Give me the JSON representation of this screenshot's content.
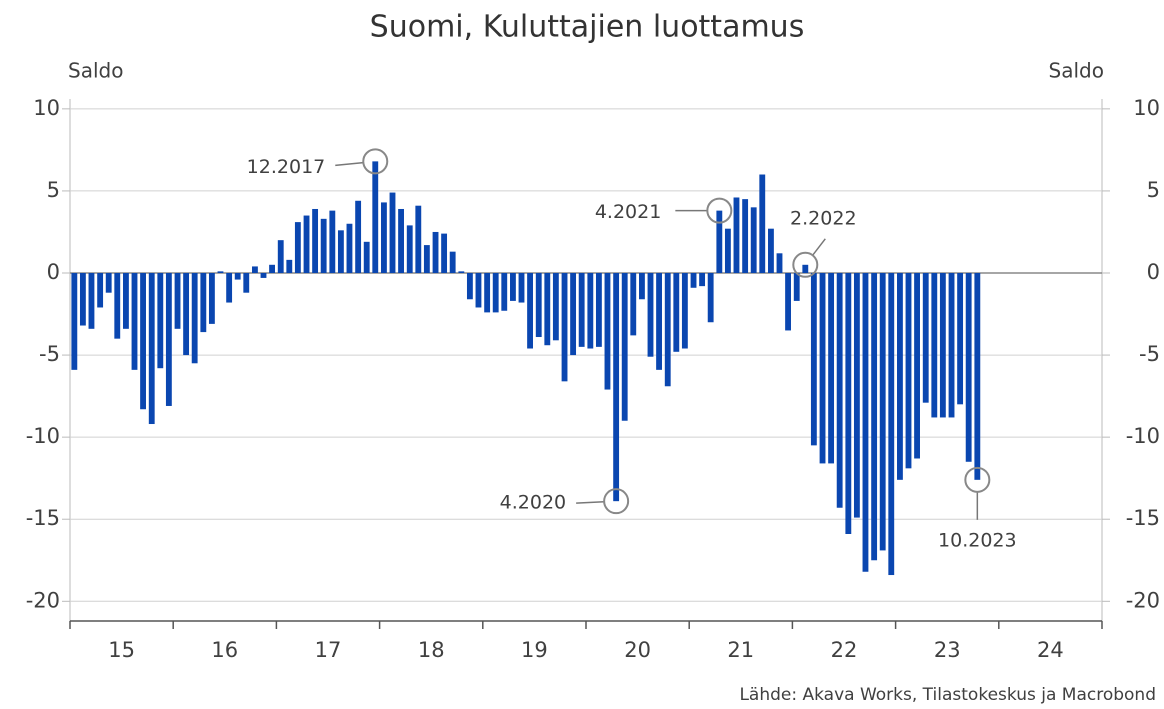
{
  "chart_data": {
    "type": "bar",
    "title": "Suomi, Kuluttajien luottamus",
    "ylabel": "Saldo",
    "y2label": "Saldo",
    "source": "Lähde: Akava Works, Tilastokeskus ja Macrobond",
    "color": "#0a46b0",
    "xlim": [
      15,
      25
    ],
    "xticks": [
      {
        "value": 15.5,
        "label": "15"
      },
      {
        "value": 16.5,
        "label": "16"
      },
      {
        "value": 17.5,
        "label": "17"
      },
      {
        "value": 18.5,
        "label": "18"
      },
      {
        "value": 19.5,
        "label": "19"
      },
      {
        "value": 20.5,
        "label": "20"
      },
      {
        "value": 21.5,
        "label": "21"
      },
      {
        "value": 22.5,
        "label": "22"
      },
      {
        "value": 23.5,
        "label": "23"
      },
      {
        "value": 24.5,
        "label": "24"
      }
    ],
    "ylim": [
      -21.2,
      10.6
    ],
    "yticks": [
      10,
      5,
      0,
      -5,
      -10,
      -15,
      -20
    ],
    "y2lim": [
      -21.2,
      10.6
    ],
    "y2ticks": [
      10,
      5,
      0,
      -5,
      -10,
      -15,
      -20
    ],
    "grid": true,
    "x": [
      15.042,
      15.125,
      15.208,
      15.292,
      15.375,
      15.458,
      15.542,
      15.625,
      15.708,
      15.792,
      15.875,
      15.958,
      16.042,
      16.125,
      16.208,
      16.292,
      16.375,
      16.458,
      16.542,
      16.625,
      16.708,
      16.792,
      16.875,
      16.958,
      17.042,
      17.125,
      17.208,
      17.292,
      17.375,
      17.458,
      17.542,
      17.625,
      17.708,
      17.792,
      17.875,
      17.958,
      18.042,
      18.125,
      18.208,
      18.292,
      18.375,
      18.458,
      18.542,
      18.625,
      18.708,
      18.792,
      18.875,
      18.958,
      19.042,
      19.125,
      19.208,
      19.292,
      19.375,
      19.458,
      19.542,
      19.625,
      19.708,
      19.792,
      19.875,
      19.958,
      20.042,
      20.125,
      20.208,
      20.292,
      20.375,
      20.458,
      20.542,
      20.625,
      20.708,
      20.792,
      20.875,
      20.958,
      21.042,
      21.125,
      21.208,
      21.292,
      21.375,
      21.458,
      21.542,
      21.625,
      21.708,
      21.792,
      21.875,
      21.958,
      22.042,
      22.125,
      22.208,
      22.292,
      22.375,
      22.458,
      22.542,
      22.625,
      22.708,
      22.792,
      22.875,
      22.958,
      23.042,
      23.125,
      23.208,
      23.292,
      23.375,
      23.458,
      23.542,
      23.625,
      23.708,
      23.792
    ],
    "values": [
      -5.9,
      -3.2,
      -3.4,
      -2.1,
      -1.2,
      -4.0,
      -3.4,
      -5.9,
      -8.3,
      -9.2,
      -5.8,
      -8.1,
      -3.4,
      -5.0,
      -5.5,
      -3.6,
      -3.1,
      0.1,
      -1.8,
      -0.4,
      -1.2,
      0.4,
      -0.3,
      0.5,
      2.0,
      0.8,
      3.1,
      3.5,
      3.9,
      3.3,
      3.8,
      2.6,
      3.0,
      4.4,
      1.9,
      6.8,
      4.3,
      4.9,
      3.9,
      2.9,
      4.1,
      1.7,
      2.5,
      2.4,
      1.3,
      0.1,
      -1.6,
      -2.1,
      -2.4,
      -2.4,
      -2.3,
      -1.7,
      -1.8,
      -4.6,
      -3.9,
      -4.4,
      -4.1,
      -6.6,
      -5.0,
      -4.5,
      -4.6,
      -4.5,
      -7.1,
      -13.9,
      -9.0,
      -3.8,
      -1.6,
      -5.1,
      -5.9,
      -6.9,
      -4.8,
      -4.6,
      -0.9,
      -0.8,
      -3.0,
      3.8,
      2.7,
      4.6,
      4.5,
      4.0,
      6.0,
      2.7,
      1.2,
      -3.5,
      -1.7,
      0.5,
      -10.5,
      -11.6,
      -11.6,
      -14.3,
      -15.9,
      -14.9,
      -18.2,
      -17.5,
      -16.9,
      -18.4,
      -12.6,
      -11.9,
      -11.3,
      -7.9,
      -8.8,
      -8.8,
      -8.8,
      -8.0,
      -11.5,
      -12.6
    ],
    "annotations": [
      {
        "text": "12.2017",
        "x": 17.958,
        "y": 6.8
      },
      {
        "text": "4.2020",
        "x": 20.292,
        "y": -13.9
      },
      {
        "text": "4.2021",
        "x": 21.292,
        "y": 3.8
      },
      {
        "text": "2.2022",
        "x": 22.125,
        "y": 0.5
      },
      {
        "text": "10.2023",
        "x": 23.792,
        "y": -12.6
      }
    ]
  }
}
